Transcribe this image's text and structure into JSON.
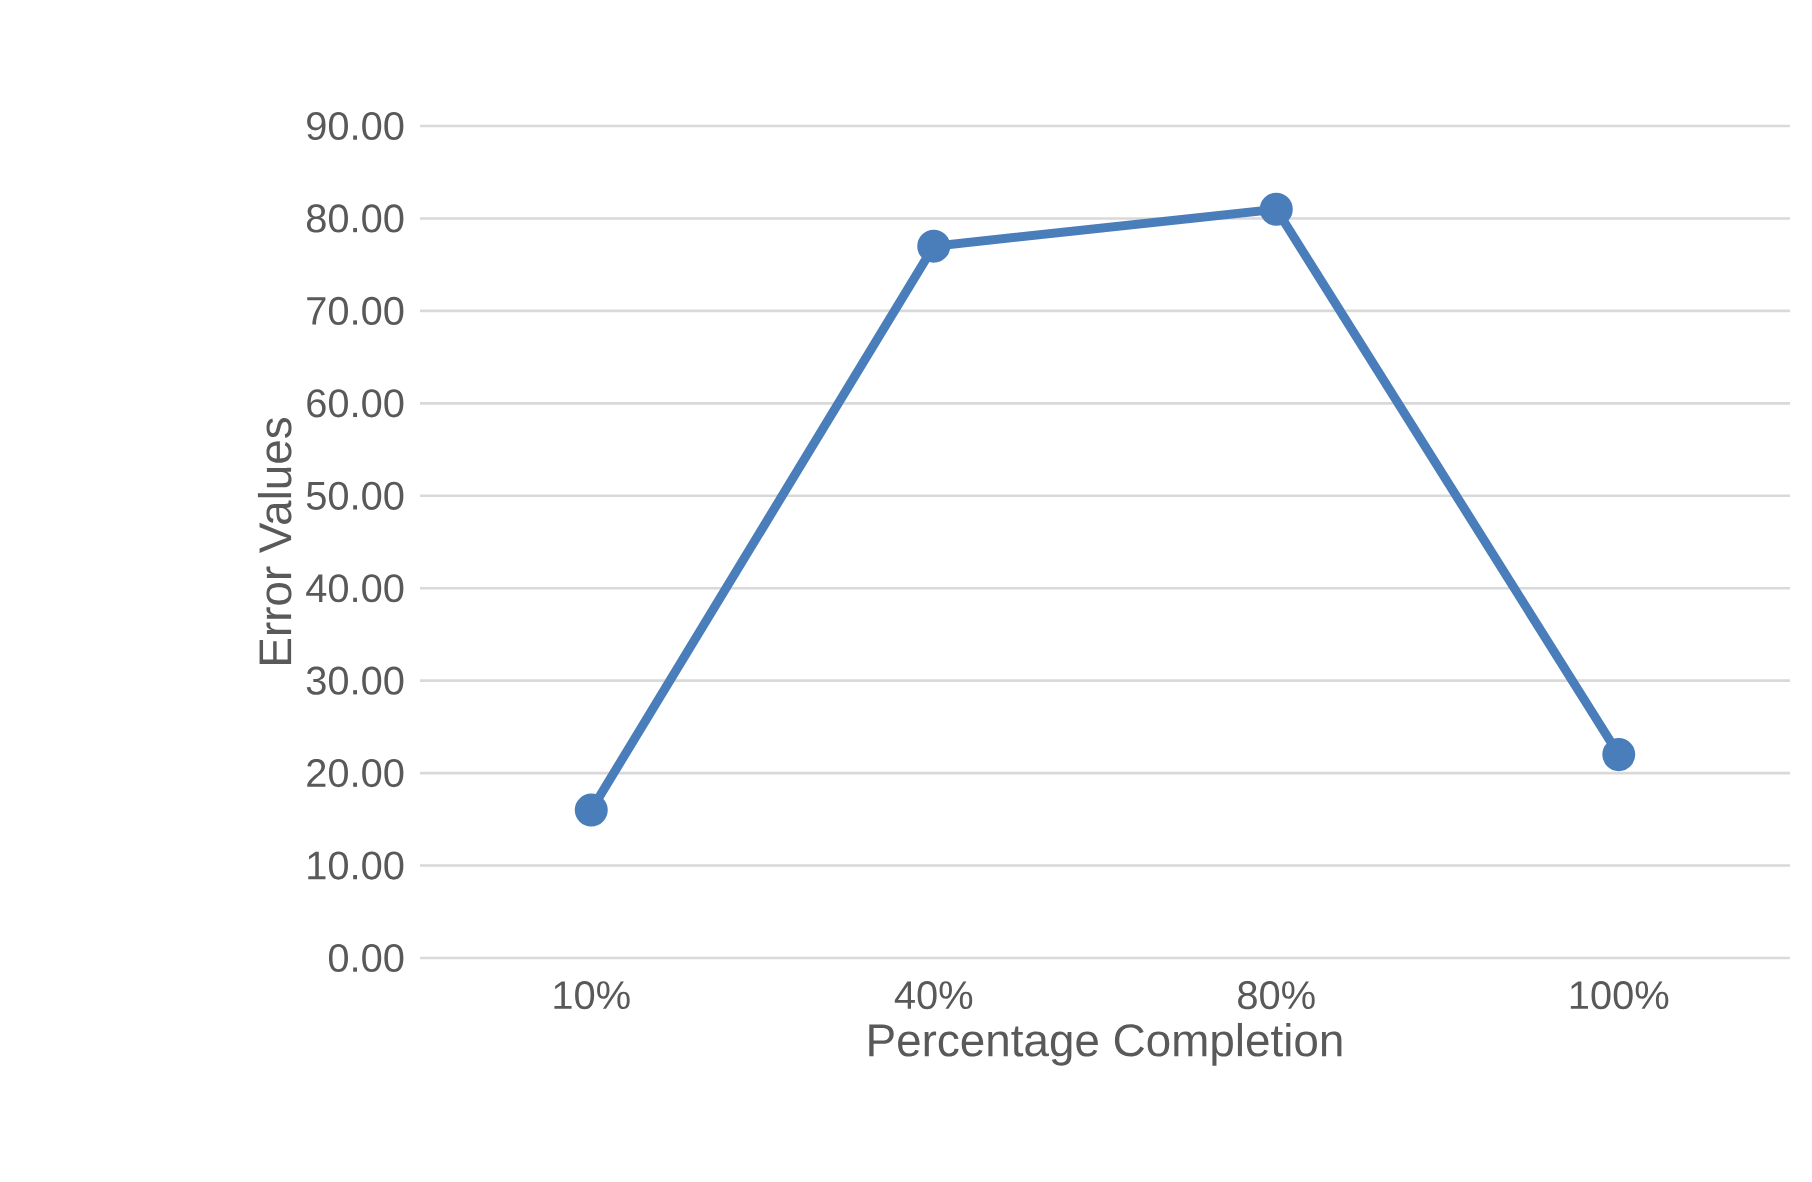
{
  "chart_data": {
    "type": "line",
    "xlabel": "Percentage Completion",
    "ylabel": "Error Values",
    "categories": [
      "10%",
      "40%",
      "80%",
      "100%"
    ],
    "series": [
      {
        "color": "#4a7ebb",
        "values": [
          16,
          77,
          81,
          22
        ]
      }
    ],
    "ylim": [
      0,
      90
    ],
    "yticks": [
      {
        "value": 0,
        "label": "0.00"
      },
      {
        "value": 10,
        "label": "10.00"
      },
      {
        "value": 20,
        "label": "20.00"
      },
      {
        "value": 30,
        "label": "30.00"
      },
      {
        "value": 40,
        "label": "40.00"
      },
      {
        "value": 50,
        "label": "50.00"
      },
      {
        "value": 60,
        "label": "60.00"
      },
      {
        "value": 70,
        "label": "70.00"
      },
      {
        "value": 80,
        "label": "80.00"
      },
      {
        "value": 90,
        "label": "90.00"
      }
    ],
    "grid": "y",
    "marker": "circle",
    "line_style": "solid"
  }
}
